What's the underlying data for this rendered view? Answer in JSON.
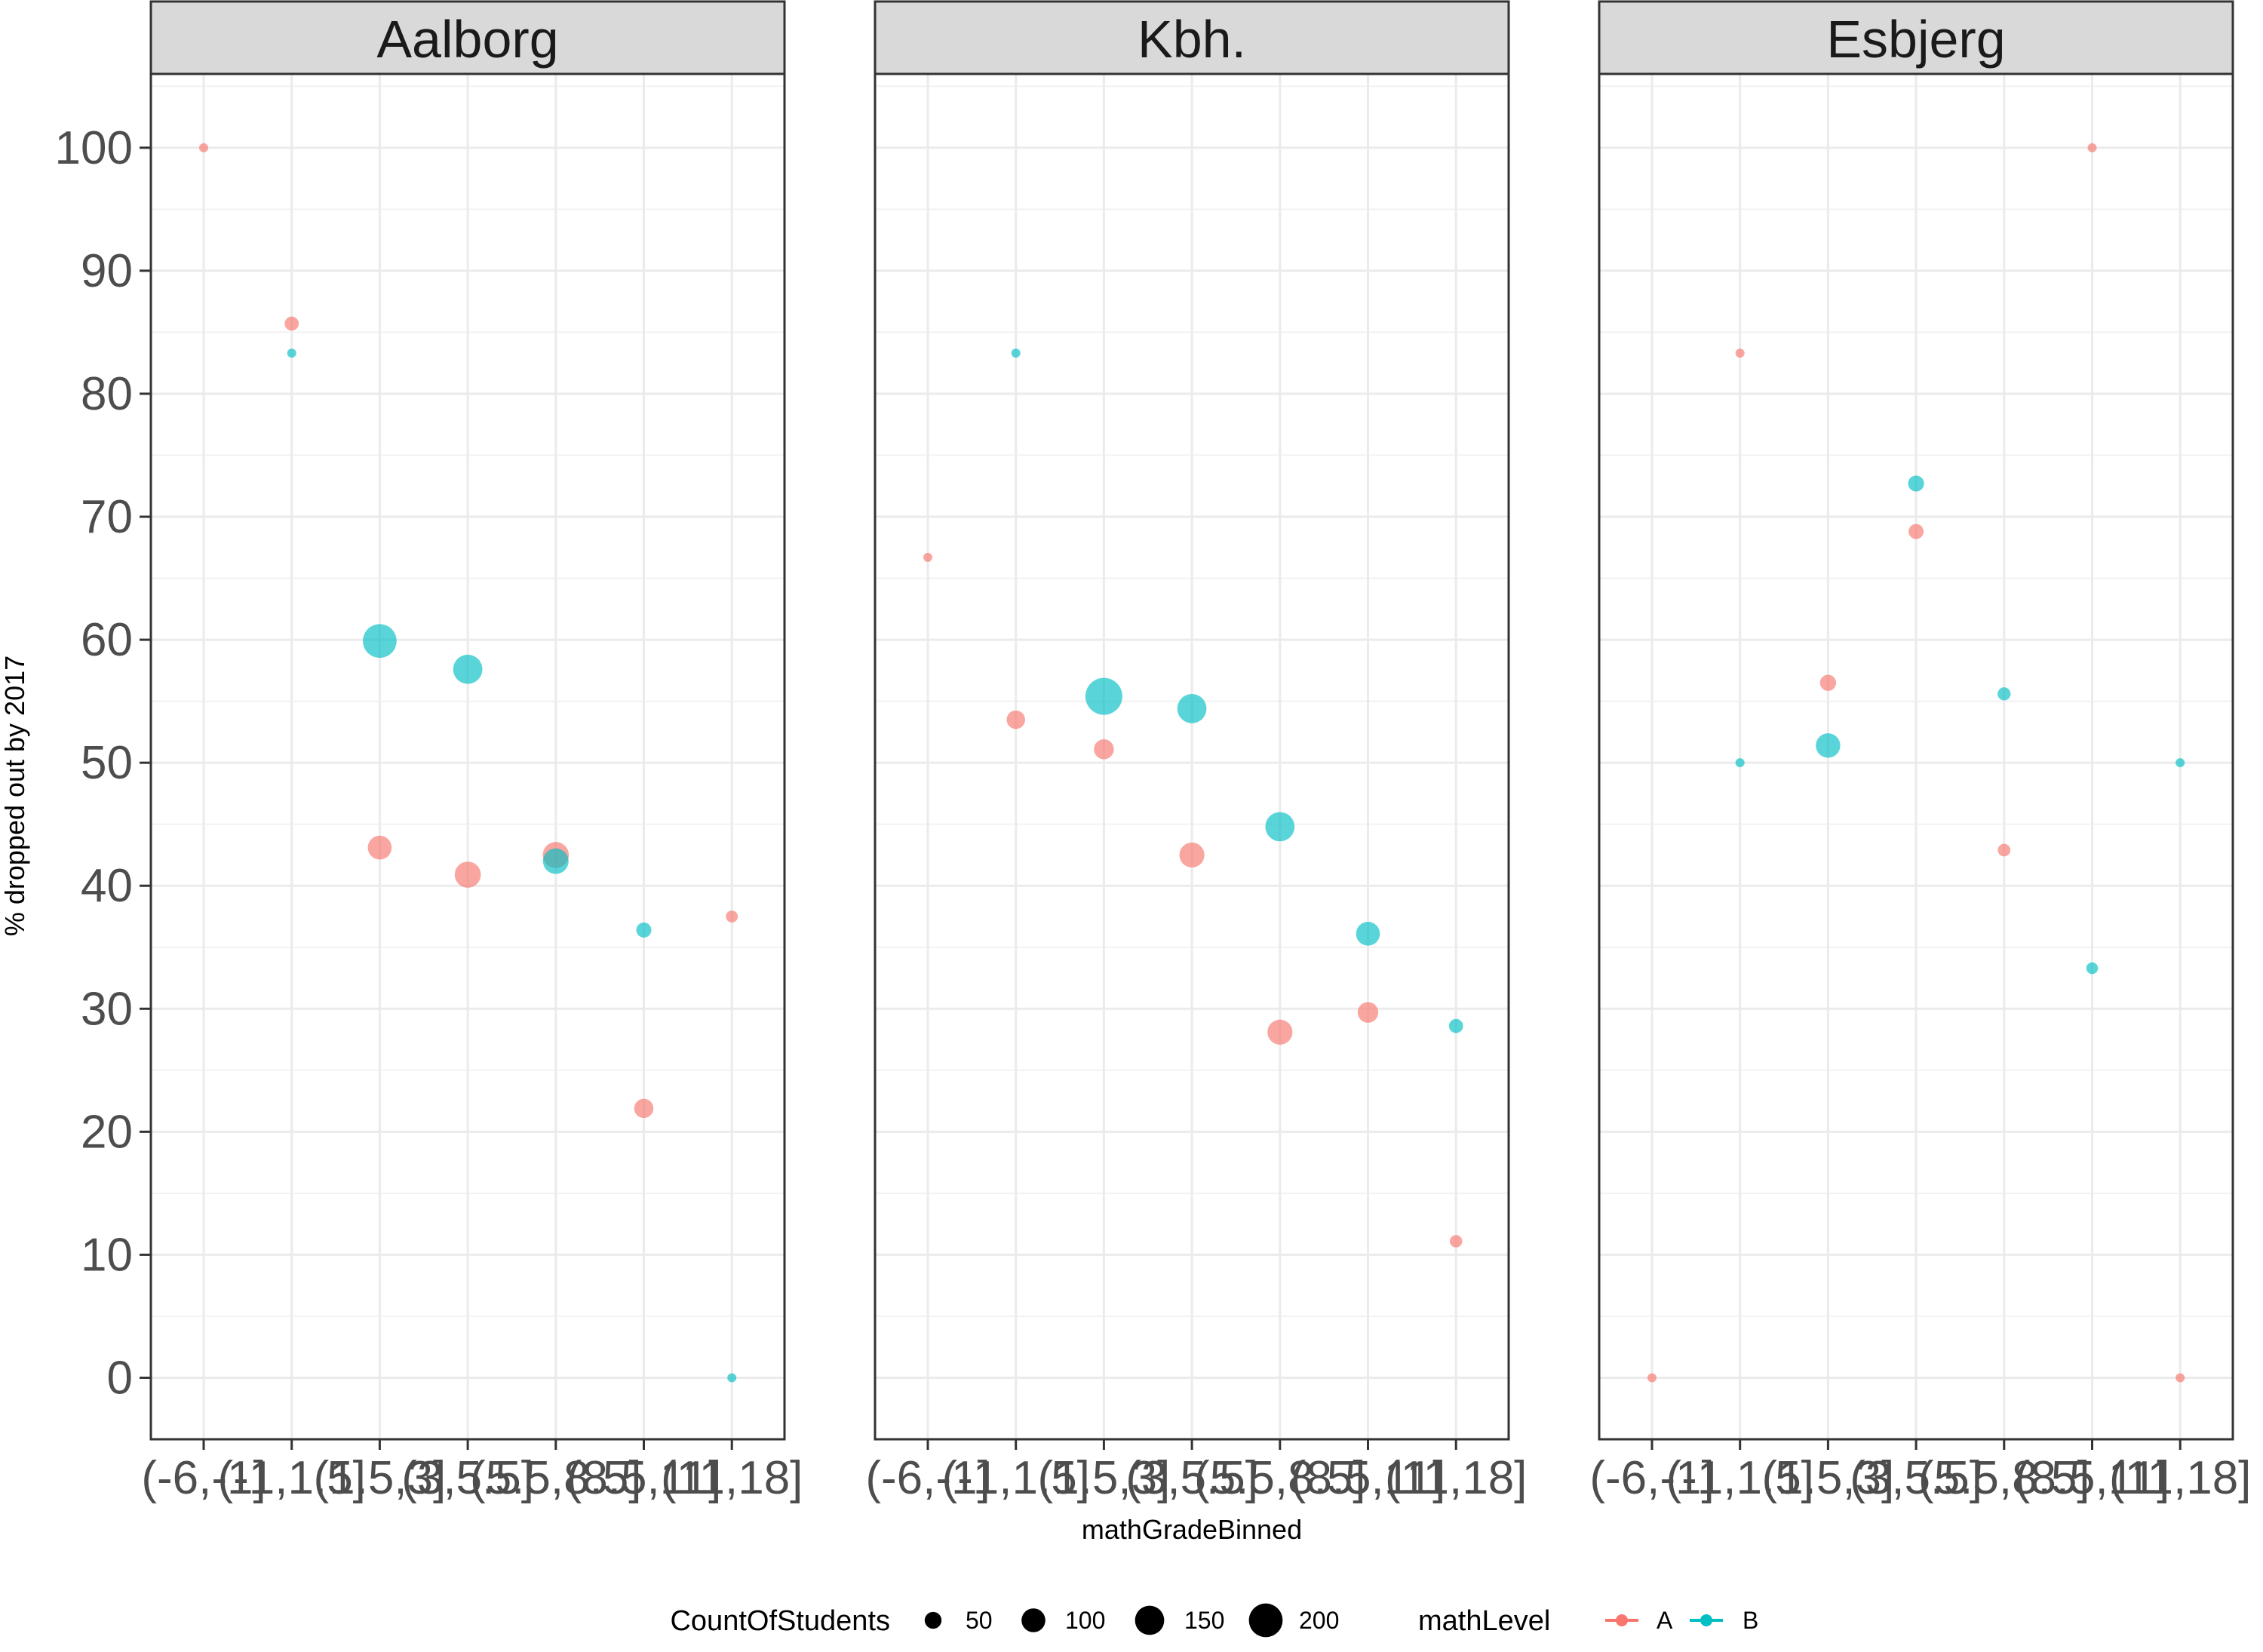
{
  "chart_data": {
    "type": "scatter",
    "xlabel": "mathGradeBinned",
    "ylabel": "% dropped out by 2017",
    "categories": [
      "(-6,-1]",
      "(-1,1.5]",
      "(1.5,3]",
      "(3,5.5]",
      "(5.5,8.5]",
      "(8.5,11]",
      "(11,18]"
    ],
    "ylim": [
      -5,
      106
    ],
    "yticks": [
      0,
      10,
      20,
      30,
      40,
      50,
      60,
      70,
      80,
      90,
      100
    ],
    "grid": true,
    "facets": [
      {
        "name": "Aalborg",
        "points": [
          {
            "x": "(-6,-1]",
            "y": 100,
            "mathLevel": "A",
            "count": 5
          },
          {
            "x": "(-1,1.5]",
            "y": 85.7,
            "mathLevel": "A",
            "count": 35
          },
          {
            "x": "(-1,1.5]",
            "y": 83.3,
            "mathLevel": "B",
            "count": 12
          },
          {
            "x": "(1.5,3]",
            "y": 59.9,
            "mathLevel": "B",
            "count": 200
          },
          {
            "x": "(1.5,3]",
            "y": 43.1,
            "mathLevel": "A",
            "count": 100
          },
          {
            "x": "(3,5.5]",
            "y": 57.6,
            "mathLevel": "B",
            "count": 150
          },
          {
            "x": "(3,5.5]",
            "y": 40.9,
            "mathLevel": "A",
            "count": 120
          },
          {
            "x": "(5.5,8.5]",
            "y": 42.5,
            "mathLevel": "A",
            "count": 120
          },
          {
            "x": "(5.5,8.5]",
            "y": 42.0,
            "mathLevel": "B",
            "count": 115
          },
          {
            "x": "(8.5,11]",
            "y": 36.4,
            "mathLevel": "B",
            "count": 40
          },
          {
            "x": "(8.5,11]",
            "y": 21.9,
            "mathLevel": "A",
            "count": 65
          },
          {
            "x": "(11,18]",
            "y": 37.5,
            "mathLevel": "A",
            "count": 25
          },
          {
            "x": "(11,18]",
            "y": 0,
            "mathLevel": "B",
            "count": 8
          }
        ]
      },
      {
        "name": "Kbh.",
        "points": [
          {
            "x": "(-6,-1]",
            "y": 66.7,
            "mathLevel": "A",
            "count": 6
          },
          {
            "x": "(-1,1.5]",
            "y": 83.3,
            "mathLevel": "B",
            "count": 12
          },
          {
            "x": "(-1,1.5]",
            "y": 53.5,
            "mathLevel": "A",
            "count": 60
          },
          {
            "x": "(1.5,3]",
            "y": 55.4,
            "mathLevel": "B",
            "count": 240
          },
          {
            "x": "(1.5,3]",
            "y": 51.1,
            "mathLevel": "A",
            "count": 70
          },
          {
            "x": "(3,5.5]",
            "y": 54.4,
            "mathLevel": "B",
            "count": 150
          },
          {
            "x": "(3,5.5]",
            "y": 42.5,
            "mathLevel": "A",
            "count": 110
          },
          {
            "x": "(5.5,8.5]",
            "y": 44.8,
            "mathLevel": "B",
            "count": 150
          },
          {
            "x": "(5.5,8.5]",
            "y": 28.1,
            "mathLevel": "A",
            "count": 110
          },
          {
            "x": "(8.5,11]",
            "y": 36.1,
            "mathLevel": "B",
            "count": 100
          },
          {
            "x": "(8.5,11]",
            "y": 29.7,
            "mathLevel": "A",
            "count": 75
          },
          {
            "x": "(11,18]",
            "y": 28.6,
            "mathLevel": "B",
            "count": 35
          },
          {
            "x": "(11,18]",
            "y": 11.1,
            "mathLevel": "A",
            "count": 27
          }
        ]
      },
      {
        "name": "Esbjerg",
        "points": [
          {
            "x": "(-6,-1]",
            "y": 0,
            "mathLevel": "A",
            "count": 1
          },
          {
            "x": "(-1,1.5]",
            "y": 83.3,
            "mathLevel": "A",
            "count": 12
          },
          {
            "x": "(-1,1.5]",
            "y": 50,
            "mathLevel": "B",
            "count": 4
          },
          {
            "x": "(1.5,3]",
            "y": 56.5,
            "mathLevel": "A",
            "count": 46
          },
          {
            "x": "(1.5,3]",
            "y": 51.4,
            "mathLevel": "B",
            "count": 105
          },
          {
            "x": "(3,5.5]",
            "y": 72.7,
            "mathLevel": "B",
            "count": 45
          },
          {
            "x": "(3,5.5]",
            "y": 68.8,
            "mathLevel": "A",
            "count": 40
          },
          {
            "x": "(5.5,8.5]",
            "y": 55.6,
            "mathLevel": "B",
            "count": 30
          },
          {
            "x": "(5.5,8.5]",
            "y": 42.9,
            "mathLevel": "A",
            "count": 28
          },
          {
            "x": "(8.5,11]",
            "y": 100,
            "mathLevel": "A",
            "count": 3
          },
          {
            "x": "(8.5,11]",
            "y": 33.3,
            "mathLevel": "B",
            "count": 24
          },
          {
            "x": "(11,18]",
            "y": 50,
            "mathLevel": "B",
            "count": 4
          },
          {
            "x": "(11,18]",
            "y": 0,
            "mathLevel": "A",
            "count": 1
          }
        ]
      }
    ],
    "legend": {
      "placement": "bottom",
      "size_title": "CountOfStudents",
      "size_breaks": [
        50,
        100,
        150,
        200
      ],
      "color_title": "mathLevel",
      "color_entries": [
        {
          "label": "A",
          "color": "#F8766D"
        },
        {
          "label": "B",
          "color": "#00BFC4"
        }
      ]
    }
  }
}
